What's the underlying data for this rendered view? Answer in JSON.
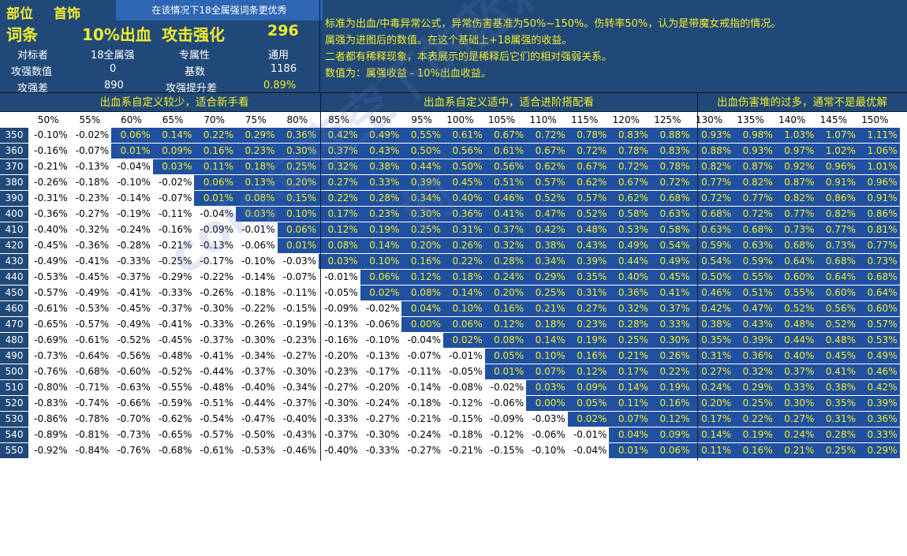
{
  "header": {
    "slot_label": "部位",
    "slot_value": "首饰",
    "banner": "在该情况下18全属强词条更优秀",
    "affix_label": "词条",
    "affix_value": "10%出血",
    "attack_label": "攻击强化",
    "attack_value": "296",
    "benchmark_label": "对标者",
    "benchmark_value": "18全属强",
    "attr_label": "专属性",
    "attr_value": "通用",
    "atk_num_label": "攻强数值",
    "atk_num_value": "0",
    "base_label": "基数",
    "base_value": "1186",
    "atk_diff_label": "攻强差",
    "atk_diff_value": "890",
    "atk_boost_label": "攻强提升差",
    "atk_boost_value": "0.89%"
  },
  "notes": [
    "标准为出血/中毒异常公式，异常伤害基准为50%~150%。伤转率50%，认为是带魔女戒指的情况。",
    "属强为进图后的数值。在这个基础上+18属强的收益。",
    "二者都有稀释现象，本表展示的是稀释后它们的相对强弱关系。",
    "数值为：属强收益 - 10%出血收益。"
  ],
  "sections": {
    "left": "出血系自定义较少，适合新手看",
    "middle": "出血系自定义适中，适合进阶搭配看",
    "right": "出血伤害堆的过多，通常不是最优解"
  },
  "watermark": "colg@夜空下的蓝莉的",
  "table": {
    "columns": [
      "50%",
      "55%",
      "60%",
      "65%",
      "70%",
      "75%",
      "80%",
      "85%",
      "90%",
      "95%",
      "100%",
      "105%",
      "110%",
      "115%",
      "120%",
      "125%",
      "130%",
      "135%",
      "140%",
      "145%",
      "150%"
    ],
    "rows": [
      {
        "label": "350",
        "values": [
          "-0.10%",
          "-0.02%",
          "0.06%",
          "0.14%",
          "0.22%",
          "0.29%",
          "0.36%",
          "0.42%",
          "0.49%",
          "0.55%",
          "0.61%",
          "0.67%",
          "0.72%",
          "0.78%",
          "0.83%",
          "0.88%",
          "0.93%",
          "0.98%",
          "1.03%",
          "1.07%",
          "1.11%"
        ]
      },
      {
        "label": "360",
        "values": [
          "-0.16%",
          "-0.07%",
          "0.01%",
          "0.09%",
          "0.16%",
          "0.23%",
          "0.30%",
          "0.37%",
          "0.43%",
          "0.50%",
          "0.56%",
          "0.61%",
          "0.67%",
          "0.72%",
          "0.78%",
          "0.83%",
          "0.88%",
          "0.93%",
          "0.97%",
          "1.02%",
          "1.06%"
        ]
      },
      {
        "label": "370",
        "values": [
          "-0.21%",
          "-0.13%",
          "-0.04%",
          "0.03%",
          "0.11%",
          "0.18%",
          "0.25%",
          "0.32%",
          "0.38%",
          "0.44%",
          "0.50%",
          "0.56%",
          "0.62%",
          "0.67%",
          "0.72%",
          "0.78%",
          "0.82%",
          "0.87%",
          "0.92%",
          "0.96%",
          "1.01%"
        ]
      },
      {
        "label": "380",
        "values": [
          "-0.26%",
          "-0.18%",
          "-0.10%",
          "-0.02%",
          "0.06%",
          "0.13%",
          "0.20%",
          "0.27%",
          "0.33%",
          "0.39%",
          "0.45%",
          "0.51%",
          "0.57%",
          "0.62%",
          "0.67%",
          "0.72%",
          "0.77%",
          "0.82%",
          "0.87%",
          "0.91%",
          "0.96%"
        ]
      },
      {
        "label": "390",
        "values": [
          "-0.31%",
          "-0.23%",
          "-0.14%",
          "-0.07%",
          "0.01%",
          "0.08%",
          "0.15%",
          "0.22%",
          "0.28%",
          "0.34%",
          "0.40%",
          "0.46%",
          "0.52%",
          "0.57%",
          "0.62%",
          "0.68%",
          "0.72%",
          "0.77%",
          "0.82%",
          "0.86%",
          "0.91%"
        ]
      },
      {
        "label": "400",
        "values": [
          "-0.36%",
          "-0.27%",
          "-0.19%",
          "-0.11%",
          "-0.04%",
          "0.03%",
          "0.10%",
          "0.17%",
          "0.23%",
          "0.30%",
          "0.36%",
          "0.41%",
          "0.47%",
          "0.52%",
          "0.58%",
          "0.63%",
          "0.68%",
          "0.72%",
          "0.77%",
          "0.82%",
          "0.86%"
        ]
      },
      {
        "label": "410",
        "values": [
          "-0.40%",
          "-0.32%",
          "-0.24%",
          "-0.16%",
          "-0.09%",
          "-0.01%",
          "0.06%",
          "0.12%",
          "0.19%",
          "0.25%",
          "0.31%",
          "0.37%",
          "0.42%",
          "0.48%",
          "0.53%",
          "0.58%",
          "0.63%",
          "0.68%",
          "0.73%",
          "0.77%",
          "0.81%"
        ]
      },
      {
        "label": "420",
        "values": [
          "-0.45%",
          "-0.36%",
          "-0.28%",
          "-0.21%",
          "-0.13%",
          "-0.06%",
          "0.01%",
          "0.08%",
          "0.14%",
          "0.20%",
          "0.26%",
          "0.32%",
          "0.38%",
          "0.43%",
          "0.49%",
          "0.54%",
          "0.59%",
          "0.63%",
          "0.68%",
          "0.73%",
          "0.77%"
        ]
      },
      {
        "label": "430",
        "values": [
          "-0.49%",
          "-0.41%",
          "-0.33%",
          "-0.25%",
          "-0.17%",
          "-0.10%",
          "-0.03%",
          "0.03%",
          "0.10%",
          "0.16%",
          "0.22%",
          "0.28%",
          "0.34%",
          "0.39%",
          "0.44%",
          "0.49%",
          "0.54%",
          "0.59%",
          "0.64%",
          "0.68%",
          "0.73%"
        ]
      },
      {
        "label": "440",
        "values": [
          "-0.53%",
          "-0.45%",
          "-0.37%",
          "-0.29%",
          "-0.22%",
          "-0.14%",
          "-0.07%",
          "-0.01%",
          "0.06%",
          "0.12%",
          "0.18%",
          "0.24%",
          "0.29%",
          "0.35%",
          "0.40%",
          "0.45%",
          "0.50%",
          "0.55%",
          "0.60%",
          "0.64%",
          "0.68%"
        ]
      },
      {
        "label": "450",
        "values": [
          "-0.57%",
          "-0.49%",
          "-0.41%",
          "-0.33%",
          "-0.26%",
          "-0.18%",
          "-0.11%",
          "-0.05%",
          "0.02%",
          "0.08%",
          "0.14%",
          "0.20%",
          "0.25%",
          "0.31%",
          "0.36%",
          "0.41%",
          "0.46%",
          "0.51%",
          "0.55%",
          "0.60%",
          "0.64%"
        ]
      },
      {
        "label": "460",
        "values": [
          "-0.61%",
          "-0.53%",
          "-0.45%",
          "-0.37%",
          "-0.30%",
          "-0.22%",
          "-0.15%",
          "-0.09%",
          "-0.02%",
          "0.04%",
          "0.10%",
          "0.16%",
          "0.21%",
          "0.27%",
          "0.32%",
          "0.37%",
          "0.42%",
          "0.47%",
          "0.52%",
          "0.56%",
          "0.60%"
        ]
      },
      {
        "label": "470",
        "values": [
          "-0.65%",
          "-0.57%",
          "-0.49%",
          "-0.41%",
          "-0.33%",
          "-0.26%",
          "-0.19%",
          "-0.13%",
          "-0.06%",
          "0.00%",
          "0.06%",
          "0.12%",
          "0.18%",
          "0.23%",
          "0.28%",
          "0.33%",
          "0.38%",
          "0.43%",
          "0.48%",
          "0.52%",
          "0.57%"
        ]
      },
      {
        "label": "480",
        "values": [
          "-0.69%",
          "-0.61%",
          "-0.52%",
          "-0.45%",
          "-0.37%",
          "-0.30%",
          "-0.23%",
          "-0.16%",
          "-0.10%",
          "-0.04%",
          "0.02%",
          "0.08%",
          "0.14%",
          "0.19%",
          "0.25%",
          "0.30%",
          "0.35%",
          "0.39%",
          "0.44%",
          "0.48%",
          "0.53%"
        ]
      },
      {
        "label": "490",
        "values": [
          "-0.73%",
          "-0.64%",
          "-0.56%",
          "-0.48%",
          "-0.41%",
          "-0.34%",
          "-0.27%",
          "-0.20%",
          "-0.13%",
          "-0.07%",
          "-0.01%",
          "0.05%",
          "0.10%",
          "0.16%",
          "0.21%",
          "0.26%",
          "0.31%",
          "0.36%",
          "0.40%",
          "0.45%",
          "0.49%"
        ]
      },
      {
        "label": "500",
        "values": [
          "-0.76%",
          "-0.68%",
          "-0.60%",
          "-0.52%",
          "-0.44%",
          "-0.37%",
          "-0.30%",
          "-0.23%",
          "-0.17%",
          "-0.11%",
          "-0.05%",
          "0.01%",
          "0.07%",
          "0.12%",
          "0.17%",
          "0.22%",
          "0.27%",
          "0.32%",
          "0.37%",
          "0.41%",
          "0.46%"
        ]
      },
      {
        "label": "510",
        "values": [
          "-0.80%",
          "-0.71%",
          "-0.63%",
          "-0.55%",
          "-0.48%",
          "-0.40%",
          "-0.34%",
          "-0.27%",
          "-0.20%",
          "-0.14%",
          "-0.08%",
          "-0.02%",
          "0.03%",
          "0.09%",
          "0.14%",
          "0.19%",
          "0.24%",
          "0.29%",
          "0.33%",
          "0.38%",
          "0.42%"
        ]
      },
      {
        "label": "520",
        "values": [
          "-0.83%",
          "-0.74%",
          "-0.66%",
          "-0.59%",
          "-0.51%",
          "-0.44%",
          "-0.37%",
          "-0.30%",
          "-0.24%",
          "-0.18%",
          "-0.12%",
          "-0.06%",
          "0.00%",
          "0.05%",
          "0.11%",
          "0.16%",
          "0.20%",
          "0.25%",
          "0.30%",
          "0.35%",
          "0.39%"
        ]
      },
      {
        "label": "530",
        "values": [
          "-0.86%",
          "-0.78%",
          "-0.70%",
          "-0.62%",
          "-0.54%",
          "-0.47%",
          "-0.40%",
          "-0.33%",
          "-0.27%",
          "-0.21%",
          "-0.15%",
          "-0.09%",
          "-0.03%",
          "0.02%",
          "0.07%",
          "0.12%",
          "0.17%",
          "0.22%",
          "0.27%",
          "0.31%",
          "0.36%"
        ]
      },
      {
        "label": "540",
        "values": [
          "-0.89%",
          "-0.81%",
          "-0.73%",
          "-0.65%",
          "-0.57%",
          "-0.50%",
          "-0.43%",
          "-0.37%",
          "-0.30%",
          "-0.24%",
          "-0.18%",
          "-0.12%",
          "-0.06%",
          "-0.01%",
          "0.04%",
          "0.09%",
          "0.14%",
          "0.19%",
          "0.24%",
          "0.28%",
          "0.33%"
        ]
      },
      {
        "label": "550",
        "values": [
          "-0.92%",
          "-0.84%",
          "-0.76%",
          "-0.68%",
          "-0.61%",
          "-0.53%",
          "-0.46%",
          "-0.40%",
          "-0.33%",
          "-0.27%",
          "-0.21%",
          "-0.15%",
          "-0.10%",
          "-0.04%",
          "0.01%",
          "0.06%",
          "0.11%",
          "0.16%",
          "0.21%",
          "0.25%",
          "0.29%"
        ]
      }
    ]
  },
  "colors": {
    "header_bg": "#204878",
    "positive_cell": "#2050a0",
    "positive_text": "#f2ee2e",
    "negative_cell": "#ffffff",
    "negative_text": "#000000"
  }
}
